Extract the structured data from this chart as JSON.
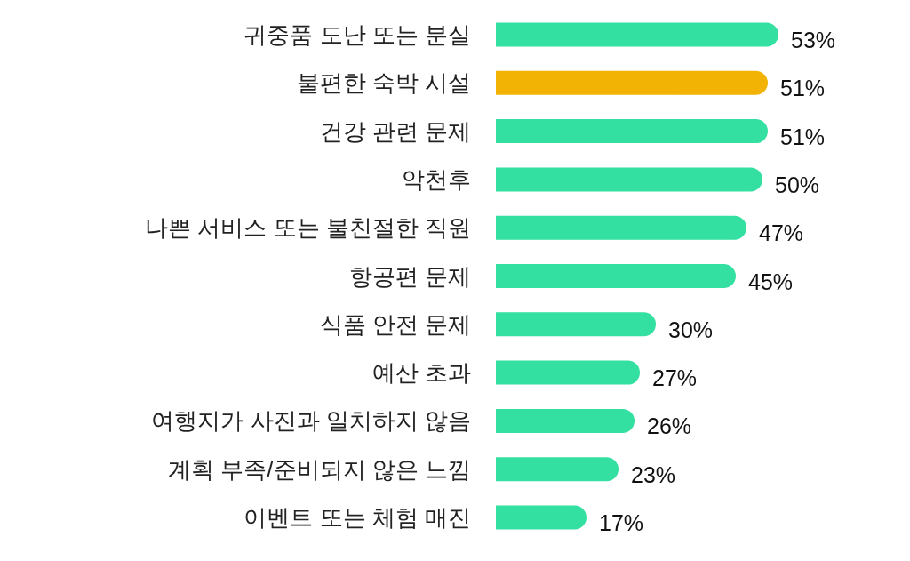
{
  "chart_data": {
    "type": "bar",
    "orientation": "horizontal",
    "categories": [
      "귀중품 도난 또는 분실",
      "불편한 숙박 시설",
      "건강 관련 문제",
      "악천후",
      "나쁜 서비스 또는 불친절한 직원",
      "항공편 문제",
      "식품 안전 문제",
      "예산 초과",
      "여행지가 사진과 일치하지 않음",
      "계획 부족/준비되지 않은 느낌",
      "이벤트 또는 체험 매진"
    ],
    "values": [
      53,
      51,
      51,
      50,
      47,
      45,
      30,
      27,
      26,
      23,
      17
    ],
    "colors": [
      "#33e0a1",
      "#f2b304",
      "#33e0a1",
      "#33e0a1",
      "#33e0a1",
      "#33e0a1",
      "#33e0a1",
      "#33e0a1",
      "#33e0a1",
      "#33e0a1",
      "#33e0a1"
    ],
    "value_labels": [
      "53%",
      "51%",
      "51%",
      "50%",
      "47%",
      "45%",
      "30%",
      "27%",
      "26%",
      "23%",
      "17%"
    ]
  }
}
